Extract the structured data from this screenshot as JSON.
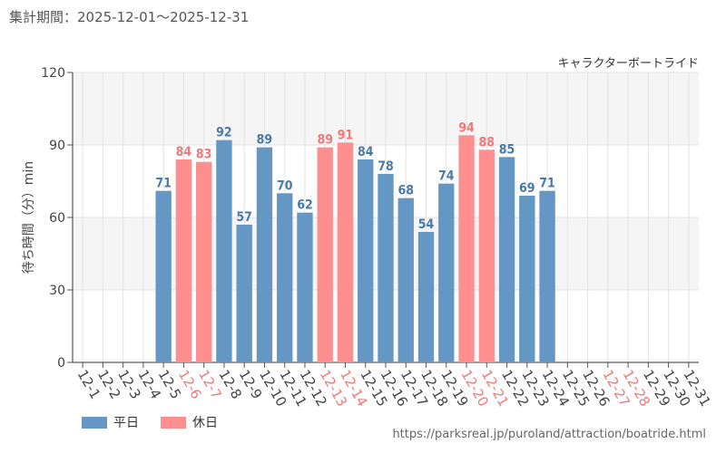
{
  "header": {
    "period": "集計期間：2025-12-01～2025-12-31",
    "attraction": "キャラクターボートライド"
  },
  "footer": {
    "url": "https://parksreal.jp/puroland/attraction/boatride.html"
  },
  "colors": {
    "weekday": "#6497c4",
    "holiday": "#ff8f8f",
    "weekday_text": "#4a7aa8",
    "holiday_text": "#f07a7a",
    "band": "#f5f5f5",
    "grid": "#e3e3e3"
  },
  "legend": {
    "weekday_label": "平日",
    "holiday_label": "休日"
  },
  "chart_data": {
    "type": "bar",
    "ylabel": "待ち時間（分）min",
    "xlabel": "",
    "ylim": [
      0,
      120
    ],
    "yticks": [
      0,
      30,
      60,
      90,
      120
    ],
    "categories": [
      "12-1",
      "12-2",
      "12-3",
      "12-4",
      "12-5",
      "12-6",
      "12-7",
      "12-8",
      "12-9",
      "12-10",
      "12-11",
      "12-12",
      "12-13",
      "12-14",
      "12-15",
      "12-16",
      "12-17",
      "12-18",
      "12-19",
      "12-20",
      "12-21",
      "12-22",
      "12-23",
      "12-24",
      "12-25",
      "12-26",
      "12-27",
      "12-28",
      "12-29",
      "12-30",
      "12-31"
    ],
    "values": [
      null,
      null,
      null,
      null,
      71,
      84,
      83,
      92,
      57,
      89,
      70,
      62,
      89,
      91,
      84,
      78,
      68,
      54,
      74,
      94,
      88,
      85,
      69,
      71,
      null,
      null,
      null,
      null,
      null,
      null,
      null
    ],
    "holiday": [
      false,
      false,
      false,
      false,
      false,
      true,
      true,
      false,
      false,
      false,
      false,
      false,
      true,
      true,
      false,
      false,
      false,
      false,
      false,
      true,
      true,
      false,
      false,
      false,
      false,
      false,
      true,
      true,
      false,
      false,
      false
    ],
    "series": [
      {
        "name": "平日"
      },
      {
        "name": "休日"
      }
    ]
  }
}
